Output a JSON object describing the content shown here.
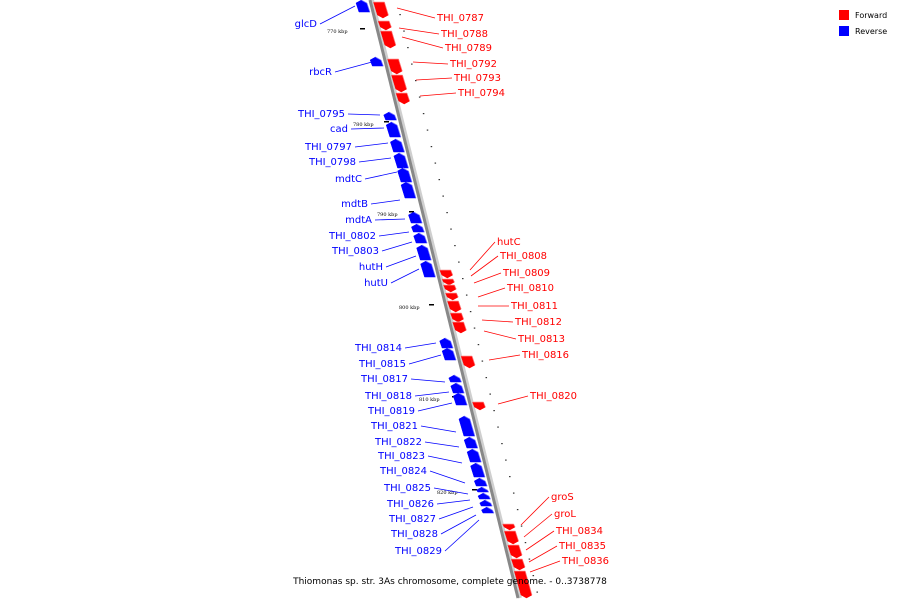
{
  "caption": "Thiomonas sp. str. 3As chromosome, complete genome. - 0..3738778",
  "legend": [
    {
      "label": "Forward",
      "color": "#ff0000"
    },
    {
      "label": "Reverse",
      "color": "#0000ff"
    }
  ],
  "colors": {
    "forward": "#ff0000",
    "reverse": "#0000ff",
    "axis": "#888888"
  },
  "ticks": [
    {
      "label": "770 kbp"
    },
    {
      "label": "780 kbp"
    },
    {
      "label": "790 kbp"
    },
    {
      "label": "800 kbp"
    },
    {
      "label": "810 kbp"
    },
    {
      "label": "820 kbp"
    }
  ],
  "genes_reverse": [
    {
      "name": "glcD"
    },
    {
      "name": "rbcR"
    },
    {
      "name": "THI_0795"
    },
    {
      "name": "cad"
    },
    {
      "name": "THI_0797"
    },
    {
      "name": "THI_0798"
    },
    {
      "name": "mdtC"
    },
    {
      "name": "mdtB"
    },
    {
      "name": "mdtA"
    },
    {
      "name": "THI_0802"
    },
    {
      "name": "THI_0803"
    },
    {
      "name": "hutH"
    },
    {
      "name": "hutU"
    },
    {
      "name": "THI_0814"
    },
    {
      "name": "THI_0815"
    },
    {
      "name": "THI_0817"
    },
    {
      "name": "THI_0818"
    },
    {
      "name": "THI_0819"
    },
    {
      "name": "THI_0821"
    },
    {
      "name": "THI_0822"
    },
    {
      "name": "THI_0823"
    },
    {
      "name": "THI_0824"
    },
    {
      "name": "THI_0825"
    },
    {
      "name": "THI_0826"
    },
    {
      "name": "THI_0827"
    },
    {
      "name": "THI_0828"
    },
    {
      "name": "THI_0829"
    }
  ],
  "genes_forward": [
    {
      "name": "THI_0787"
    },
    {
      "name": "THI_0788"
    },
    {
      "name": "THI_0789"
    },
    {
      "name": "THI_0792"
    },
    {
      "name": "THI_0793"
    },
    {
      "name": "THI_0794"
    },
    {
      "name": "hutC"
    },
    {
      "name": "THI_0808"
    },
    {
      "name": "THI_0809"
    },
    {
      "name": "THI_0810"
    },
    {
      "name": "THI_0811"
    },
    {
      "name": "THI_0812"
    },
    {
      "name": "THI_0813"
    },
    {
      "name": "THI_0816"
    },
    {
      "name": "THI_0820"
    },
    {
      "name": "groS"
    },
    {
      "name": "groL"
    },
    {
      "name": "THI_0834"
    },
    {
      "name": "THI_0835"
    },
    {
      "name": "THI_0836"
    }
  ]
}
